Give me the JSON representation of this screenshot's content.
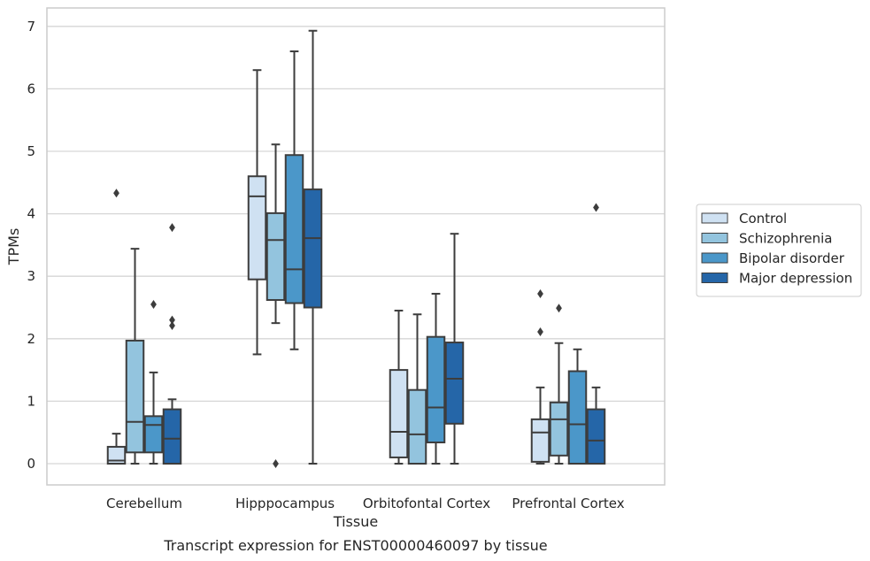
{
  "chart_data": {
    "type": "box",
    "caption": "Transcript expression for ENST00000460097 by tissue",
    "xlabel": "Tissue",
    "ylabel": "TPMs",
    "ylim": [
      -0.33,
      7.3
    ],
    "yticks": [
      0,
      1,
      2,
      3,
      4,
      5,
      6,
      7
    ],
    "grid": true,
    "legend_position": "right",
    "categories": [
      "Cerebellum",
      "Hipppocampus",
      "Orbitofontal Cortex",
      "Prefrontal Cortex"
    ],
    "series": [
      {
        "name": "Control",
        "color": "#cfe1f2",
        "boxes": [
          {
            "whisker_low": 0.0,
            "q1": 0.0,
            "median": 0.05,
            "q3": 0.27,
            "whisker_high": 0.48,
            "outliers": [
              4.33
            ]
          },
          {
            "whisker_low": 1.75,
            "q1": 2.95,
            "median": 4.28,
            "q3": 4.6,
            "whisker_high": 6.3,
            "outliers": []
          },
          {
            "whisker_low": 0.0,
            "q1": 0.1,
            "median": 0.51,
            "q3": 1.5,
            "whisker_high": 2.45,
            "outliers": []
          },
          {
            "whisker_low": 0.0,
            "q1": 0.03,
            "median": 0.5,
            "q3": 0.71,
            "whisker_high": 1.22,
            "outliers": [
              2.72,
              2.11
            ]
          }
        ]
      },
      {
        "name": "Schizophrenia",
        "color": "#93c4de",
        "boxes": [
          {
            "whisker_low": 0.0,
            "q1": 0.18,
            "median": 0.67,
            "q3": 1.97,
            "whisker_high": 3.44,
            "outliers": []
          },
          {
            "whisker_low": 2.25,
            "q1": 2.62,
            "median": 3.58,
            "q3": 4.01,
            "whisker_high": 5.11,
            "outliers": [
              0.0
            ]
          },
          {
            "whisker_low": 0.0,
            "q1": 0.0,
            "median": 0.47,
            "q3": 1.18,
            "whisker_high": 2.39,
            "outliers": []
          },
          {
            "whisker_low": 0.0,
            "q1": 0.13,
            "median": 0.71,
            "q3": 0.98,
            "whisker_high": 1.93,
            "outliers": [
              2.49
            ]
          }
        ]
      },
      {
        "name": "Bipolar disorder",
        "color": "#4b97c9",
        "boxes": [
          {
            "whisker_low": 0.0,
            "q1": 0.18,
            "median": 0.62,
            "q3": 0.76,
            "whisker_high": 1.46,
            "outliers": [
              2.55
            ]
          },
          {
            "whisker_low": 1.83,
            "q1": 2.57,
            "median": 3.11,
            "q3": 4.94,
            "whisker_high": 6.6,
            "outliers": []
          },
          {
            "whisker_low": 0.0,
            "q1": 0.34,
            "median": 0.9,
            "q3": 2.03,
            "whisker_high": 2.72,
            "outliers": []
          },
          {
            "whisker_low": 0.0,
            "q1": 0.0,
            "median": 0.63,
            "q3": 1.48,
            "whisker_high": 1.83,
            "outliers": []
          }
        ]
      },
      {
        "name": "Major depression",
        "color": "#2566a8",
        "boxes": [
          {
            "whisker_low": 0.0,
            "q1": 0.0,
            "median": 0.4,
            "q3": 0.87,
            "whisker_high": 1.03,
            "outliers": [
              3.78,
              2.3,
              2.21
            ]
          },
          {
            "whisker_low": 0.0,
            "q1": 2.5,
            "median": 3.61,
            "q3": 4.39,
            "whisker_high": 6.93,
            "outliers": []
          },
          {
            "whisker_low": 0.0,
            "q1": 0.64,
            "median": 1.36,
            "q3": 1.94,
            "whisker_high": 3.68,
            "outliers": []
          },
          {
            "whisker_low": 0.0,
            "q1": 0.0,
            "median": 0.37,
            "q3": 0.87,
            "whisker_high": 1.22,
            "outliers": [
              4.1
            ]
          }
        ]
      }
    ]
  }
}
